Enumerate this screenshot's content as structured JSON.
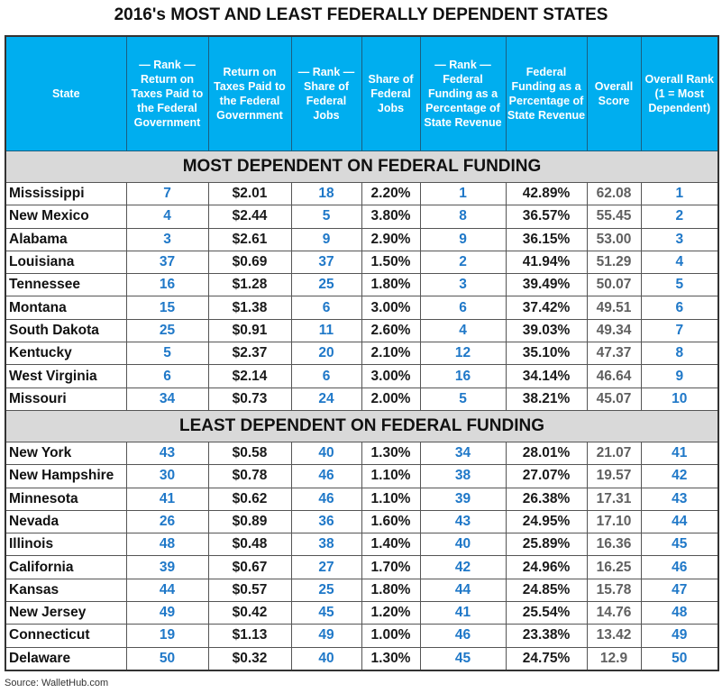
{
  "title": "2016's MOST AND LEAST FEDERALLY DEPENDENT STATES",
  "colors": {
    "header_bg": "#00AEEF",
    "rank_text": "#1F78C8",
    "section_bg": "#D9D9D9",
    "score_text": "#606060"
  },
  "columns": [
    "State",
    "— Rank — Return on Taxes Paid to the Federal Government",
    "Return on Taxes Paid to the Federal Government",
    "— Rank — Share of Federal Jobs",
    "Share of Federal Jobs",
    "— Rank — Federal Funding as a Percentage of State Revenue",
    "Federal Funding as a Percentage of State Revenue",
    "Overall Score",
    "Overall Rank (1 = Most Dependent)"
  ],
  "sections": [
    {
      "label": "MOST DEPENDENT ON FEDERAL FUNDING",
      "rows": [
        [
          "Mississippi",
          "7",
          "$2.01",
          "18",
          "2.20%",
          "1",
          "42.89%",
          "62.08",
          "1"
        ],
        [
          "New Mexico",
          "4",
          "$2.44",
          "5",
          "3.80%",
          "8",
          "36.57%",
          "55.45",
          "2"
        ],
        [
          "Alabama",
          "3",
          "$2.61",
          "9",
          "2.90%",
          "9",
          "36.15%",
          "53.00",
          "3"
        ],
        [
          "Louisiana",
          "37",
          "$0.69",
          "37",
          "1.50%",
          "2",
          "41.94%",
          "51.29",
          "4"
        ],
        [
          "Tennessee",
          "16",
          "$1.28",
          "25",
          "1.80%",
          "3",
          "39.49%",
          "50.07",
          "5"
        ],
        [
          "Montana",
          "15",
          "$1.38",
          "6",
          "3.00%",
          "6",
          "37.42%",
          "49.51",
          "6"
        ],
        [
          "South Dakota",
          "25",
          "$0.91",
          "11",
          "2.60%",
          "4",
          "39.03%",
          "49.34",
          "7"
        ],
        [
          "Kentucky",
          "5",
          "$2.37",
          "20",
          "2.10%",
          "12",
          "35.10%",
          "47.37",
          "8"
        ],
        [
          "West Virginia",
          "6",
          "$2.14",
          "6",
          "3.00%",
          "16",
          "34.14%",
          "46.64",
          "9"
        ],
        [
          "Missouri",
          "34",
          "$0.73",
          "24",
          "2.00%",
          "5",
          "38.21%",
          "45.07",
          "10"
        ]
      ]
    },
    {
      "label": "LEAST DEPENDENT ON FEDERAL FUNDING",
      "rows": [
        [
          "New York",
          "43",
          "$0.58",
          "40",
          "1.30%",
          "34",
          "28.01%",
          "21.07",
          "41"
        ],
        [
          "New Hampshire",
          "30",
          "$0.78",
          "46",
          "1.10%",
          "38",
          "27.07%",
          "19.57",
          "42"
        ],
        [
          "Minnesota",
          "41",
          "$0.62",
          "46",
          "1.10%",
          "39",
          "26.38%",
          "17.31",
          "43"
        ],
        [
          "Nevada",
          "26",
          "$0.89",
          "36",
          "1.60%",
          "43",
          "24.95%",
          "17.10",
          "44"
        ],
        [
          "Illinois",
          "48",
          "$0.48",
          "38",
          "1.40%",
          "40",
          "25.89%",
          "16.36",
          "45"
        ],
        [
          "California",
          "39",
          "$0.67",
          "27",
          "1.70%",
          "42",
          "24.96%",
          "16.25",
          "46"
        ],
        [
          "Kansas",
          "44",
          "$0.57",
          "25",
          "1.80%",
          "44",
          "24.85%",
          "15.78",
          "47"
        ],
        [
          "New Jersey",
          "49",
          "$0.42",
          "45",
          "1.20%",
          "41",
          "25.54%",
          "14.76",
          "48"
        ],
        [
          "Connecticut",
          "19",
          "$1.13",
          "49",
          "1.00%",
          "46",
          "23.38%",
          "13.42",
          "49"
        ],
        [
          "Delaware",
          "50",
          "$0.32",
          "40",
          "1.30%",
          "45",
          "24.75%",
          "12.9",
          "50"
        ]
      ]
    }
  ],
  "source": "Source: WalletHub.com"
}
